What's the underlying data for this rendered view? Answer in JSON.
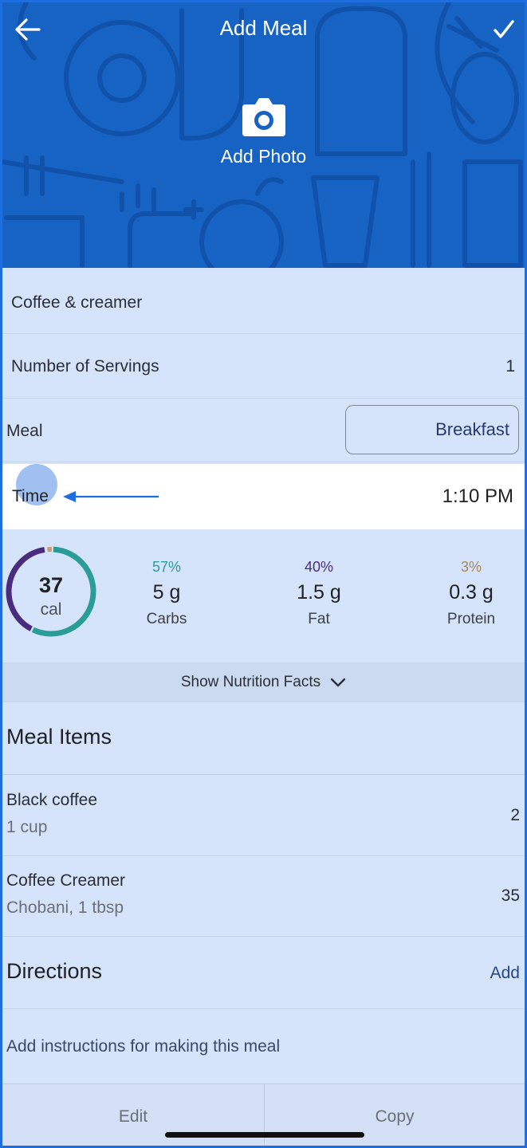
{
  "header": {
    "title": "Add Meal",
    "photo_label": "Add Photo",
    "back_icon": "arrow-left-icon",
    "confirm_icon": "checkmark-icon",
    "photo_icon": "camera-icon"
  },
  "form": {
    "name_value": "Coffee & creamer",
    "servings_label": "Number of Servings",
    "servings_value": "1",
    "meal_label": "Meal",
    "meal_value": "Breakfast",
    "time_label": "Time",
    "time_value": "1:10 PM"
  },
  "nutrition": {
    "calories": "37",
    "calories_unit": "cal",
    "carbs": {
      "percent": "57%",
      "amount": "5 g",
      "label": "Carbs",
      "color": "#2a9d96"
    },
    "fat": {
      "percent": "40%",
      "amount": "1.5 g",
      "label": "Fat",
      "color": "#4a2c7e"
    },
    "protein": {
      "percent": "3%",
      "amount": "0.3 g",
      "label": "Protein",
      "color": "#a8875a"
    },
    "show_facts_label": "Show Nutrition Facts"
  },
  "meal_items": {
    "heading": "Meal Items",
    "items": [
      {
        "name": "Black coffee",
        "desc": "1 cup",
        "calories": "2"
      },
      {
        "name": "Coffee Creamer",
        "desc": "Chobani, 1 tbsp",
        "calories": "35"
      }
    ]
  },
  "directions": {
    "heading": "Directions",
    "add_label": "Add",
    "placeholder": "Add instructions for making this meal"
  },
  "bottom_bar": {
    "edit_label": "Edit",
    "copy_label": "Copy"
  },
  "colors": {
    "header_blue": "#1763c4",
    "frame_border": "#1e6ee0",
    "background": "#d5e4fb",
    "annotation_arrow": "#1e6ee0"
  }
}
